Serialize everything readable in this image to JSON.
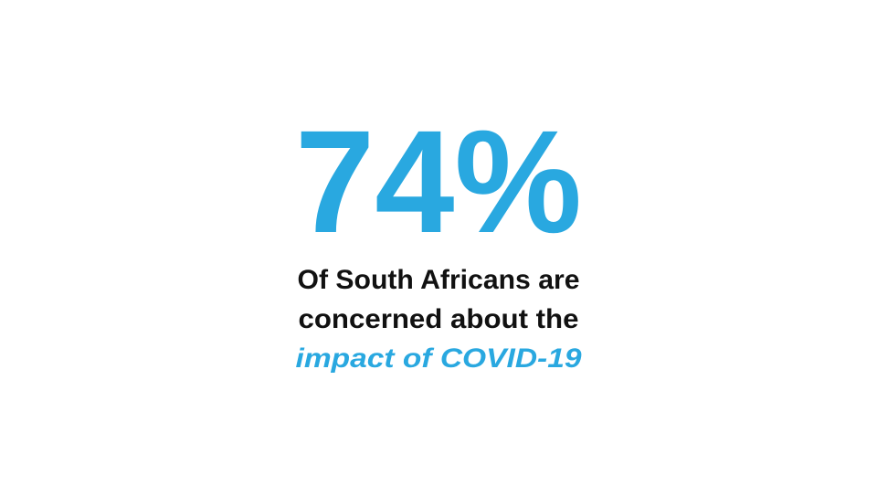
{
  "stat": "74%",
  "caption": {
    "lines": [
      "Of South Africans are",
      "concerned about the"
    ],
    "highlight": "impact of COVID-19"
  }
}
